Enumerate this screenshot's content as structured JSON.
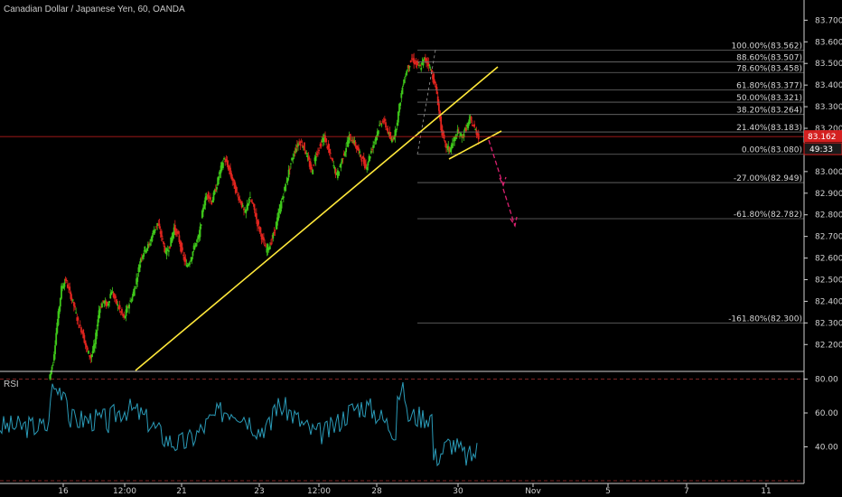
{
  "header": {
    "title": "Canadian Dollar / Japanese Yen, 60, OANDA"
  },
  "rsi": {
    "title": "RSI",
    "ticks": [
      "80.00",
      "60.00",
      "40.00"
    ],
    "upper": 80,
    "lower": 20,
    "ylim": [
      20,
      84
    ]
  },
  "current": {
    "price": "83.162",
    "countdown": "49:33"
  },
  "colors": {
    "up": "#3ec61a",
    "down": "#e0241e",
    "trend": "#ffe83a",
    "arrow": "#d9206f",
    "rsi": "#2a9bb8",
    "price_line": "#d42020"
  },
  "chart_data": {
    "type": "candlestick",
    "ylim": [
      82.08,
      83.76
    ],
    "y_ticks": [
      "83.700",
      "83.600",
      "83.500",
      "83.400",
      "83.300",
      "83.200",
      "83.100",
      "83.000",
      "82.900",
      "82.800",
      "82.700",
      "82.600",
      "82.500",
      "82.400",
      "82.300",
      "82.200"
    ],
    "x_ticks": [
      "16",
      "12:00",
      "21",
      "23",
      "12:00",
      "28",
      "30",
      "Nov",
      "5",
      "7",
      "11"
    ],
    "fib_levels": [
      {
        "label": "100.00%(83.562)",
        "value": 83.562
      },
      {
        "label": "88.60%(83.507)",
        "value": 83.507
      },
      {
        "label": "78.60%(83.458)",
        "value": 83.458
      },
      {
        "label": "61.80%(83.377)",
        "value": 83.377
      },
      {
        "label": "50.00%(83.321)",
        "value": 83.321
      },
      {
        "label": "38.20%(83.264)",
        "value": 83.264
      },
      {
        "label": "21.40%(83.183)",
        "value": 83.183
      },
      {
        "label": "0.00%(83.080)",
        "value": 83.08
      },
      {
        "label": "-27.00%(82.949)",
        "value": 82.949
      },
      {
        "label": "-61.80%(82.782)",
        "value": 82.782
      },
      {
        "label": "-161.80%(82.300)",
        "value": 82.3
      }
    ],
    "closes_approx": [
      82.12,
      82.3,
      82.46,
      82.5,
      82.44,
      82.38,
      82.3,
      82.26,
      82.18,
      82.14,
      82.2,
      82.36,
      82.4,
      82.38,
      82.45,
      82.4,
      82.36,
      82.32,
      82.38,
      82.42,
      82.5,
      82.6,
      82.64,
      82.66,
      82.72,
      82.76,
      82.7,
      82.62,
      82.66,
      82.74,
      82.7,
      82.62,
      82.56,
      82.6,
      82.66,
      82.7,
      82.84,
      82.9,
      82.86,
      82.92,
      83.0,
      83.06,
      83.02,
      82.96,
      82.9,
      82.86,
      82.8,
      82.88,
      82.84,
      82.76,
      82.7,
      82.64,
      82.66,
      82.72,
      82.8,
      82.88,
      82.96,
      83.04,
      83.1,
      83.14,
      83.12,
      83.06,
      83.0,
      83.08,
      83.12,
      83.16,
      83.1,
      83.04,
      82.98,
      83.04,
      83.1,
      83.16,
      83.14,
      83.1,
      83.06,
      83.02,
      83.08,
      83.14,
      83.2,
      83.24,
      83.2,
      83.14,
      83.18,
      83.3,
      83.42,
      83.48,
      83.52,
      83.5,
      83.48,
      83.52,
      83.5,
      83.44,
      83.36,
      83.2,
      83.12,
      83.1,
      83.14,
      83.18,
      83.16,
      83.2,
      83.24,
      83.2,
      83.162
    ]
  }
}
